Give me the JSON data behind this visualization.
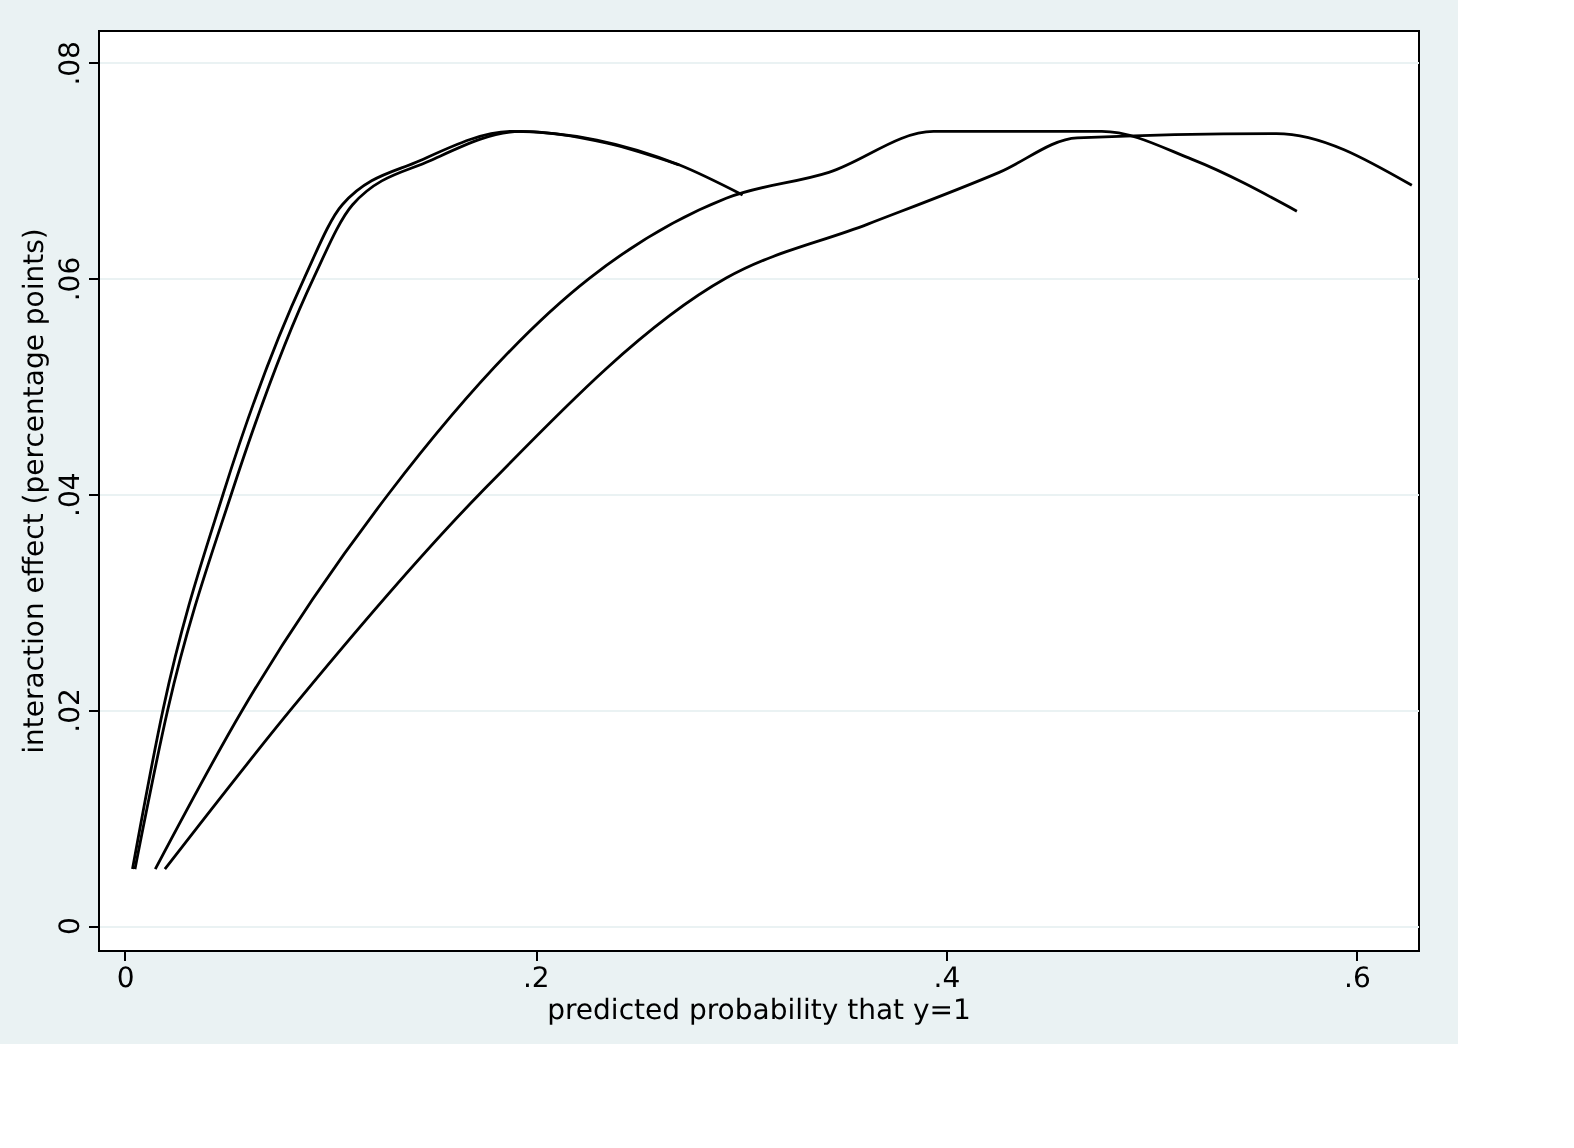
{
  "chart_data": {
    "type": "line",
    "xlabel": "predicted probability that y=1",
    "ylabel": "interaction effect (percentage points)",
    "xlim": [
      -0.013,
      0.63
    ],
    "ylim": [
      -0.0023,
      0.083
    ],
    "xticks": [
      0,
      {
        "value": 0.2,
        "label": ".2"
      },
      {
        "value": 0.4,
        "label": ".4"
      },
      {
        "value": 0.6,
        "label": ".6"
      }
    ],
    "yticks": [
      0,
      {
        "value": 0.02,
        "label": ".02"
      },
      {
        "value": 0.04,
        "label": ".04"
      },
      {
        "value": 0.06,
        "label": ".06"
      },
      {
        "value": 0.08,
        "label": ".08"
      }
    ],
    "grid": "y",
    "marker": "none",
    "line_style": "solid",
    "series": [
      {
        "color": "#000000",
        "x": [
          0.0038,
          0.0187,
          0.048,
          0.0875,
          0.106,
          0.144,
          0.189,
          0.23,
          0.27,
          0.301
        ],
        "values": [
          0.0052,
          0.02,
          0.04,
          0.06,
          0.0668,
          0.0709,
          0.0736,
          0.0728,
          0.0705,
          0.0677
        ]
      },
      {
        "color": "#000000",
        "x": [
          0.005,
          0.021,
          0.052,
          0.092,
          0.111,
          0.149,
          0.193,
          0.235,
          0.27
        ],
        "values": [
          0.0052,
          0.02,
          0.04,
          0.06,
          0.0668,
          0.0709,
          0.0736,
          0.0725,
          0.0705
        ]
      },
      {
        "color": "#000000",
        "x": [
          0.0149,
          0.0575,
          0.1286,
          0.2265,
          0.293,
          0.343,
          0.394,
          0.476,
          0.52,
          0.571
        ],
        "values": [
          0.0052,
          0.02,
          0.04,
          0.06,
          0.0674,
          0.0698,
          0.0736,
          0.0736,
          0.071,
          0.0662
        ]
      },
      {
        "color": "#000000",
        "x": [
          0.0196,
          0.081,
          0.173,
          0.293,
          0.362,
          0.426,
          0.464,
          0.561,
          0.627
        ],
        "values": [
          0.0052,
          0.02,
          0.04,
          0.06,
          0.065,
          0.0698,
          0.073,
          0.0734,
          0.0686
        ]
      }
    ]
  }
}
